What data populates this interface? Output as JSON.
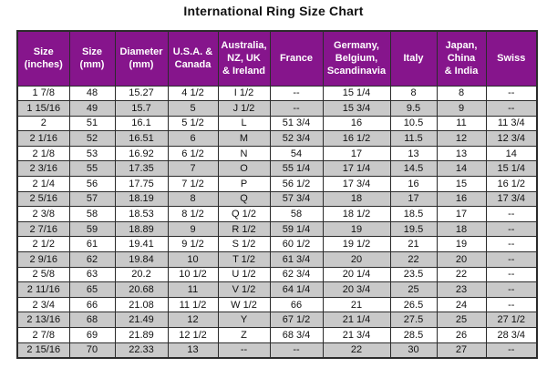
{
  "page": {
    "title": "International Ring Size Chart"
  },
  "colors": {
    "header_bg": "#86158c",
    "header_text": "#ffffff",
    "row_bg": "#ffffff",
    "row_alt_bg": "#c9c9c9",
    "border": "#2b2b2b",
    "body_text": "#111111"
  },
  "chart_data": {
    "type": "table",
    "title": "International Ring Size Chart",
    "columns": [
      "Size\n(inches)",
      "Size\n(mm)",
      "Diameter\n(mm)",
      "U.S.A. &\nCanada",
      "Australia,\nNZ, UK\n& Ireland",
      "France",
      "Germany,\nBelgium,\nScandinavia",
      "Italy",
      "Japan,\nChina\n& India",
      "Swiss"
    ],
    "rows": [
      [
        "1 7/8",
        "48",
        "15.27",
        "4 1/2",
        "I 1/2",
        "--",
        "15 1/4",
        "8",
        "8",
        "--"
      ],
      [
        "1 15/16",
        "49",
        "15.7",
        "5",
        "J 1/2",
        "--",
        "15 3/4",
        "9.5",
        "9",
        "--"
      ],
      [
        "2",
        "51",
        "16.1",
        "5 1/2",
        "L",
        "51 3/4",
        "16",
        "10.5",
        "11",
        "11 3/4"
      ],
      [
        "2 1/16",
        "52",
        "16.51",
        "6",
        "M",
        "52 3/4",
        "16 1/2",
        "11.5",
        "12",
        "12 3/4"
      ],
      [
        "2 1/8",
        "53",
        "16.92",
        "6 1/2",
        "N",
        "54",
        "17",
        "13",
        "13",
        "14"
      ],
      [
        "2 3/16",
        "55",
        "17.35",
        "7",
        "O",
        "55 1/4",
        "17 1/4",
        "14.5",
        "14",
        "15 1/4"
      ],
      [
        "2 1/4",
        "56",
        "17.75",
        "7 1/2",
        "P",
        "56 1/2",
        "17 3/4",
        "16",
        "15",
        "16 1/2"
      ],
      [
        "2 5/16",
        "57",
        "18.19",
        "8",
        "Q",
        "57 3/4",
        "18",
        "17",
        "16",
        "17 3/4"
      ],
      [
        "2 3/8",
        "58",
        "18.53",
        "8 1/2",
        "Q 1/2",
        "58",
        "18 1/2",
        "18.5",
        "17",
        "--"
      ],
      [
        "2 7/16",
        "59",
        "18.89",
        "9",
        "R 1/2",
        "59 1/4",
        "19",
        "19.5",
        "18",
        "--"
      ],
      [
        "2 1/2",
        "61",
        "19.41",
        "9 1/2",
        "S 1/2",
        "60 1/2",
        "19 1/2",
        "21",
        "19",
        "--"
      ],
      [
        "2 9/16",
        "62",
        "19.84",
        "10",
        "T 1/2",
        "61 3/4",
        "20",
        "22",
        "20",
        "--"
      ],
      [
        "2 5/8",
        "63",
        "20.2",
        "10 1/2",
        "U 1/2",
        "62 3/4",
        "20 1/4",
        "23.5",
        "22",
        "--"
      ],
      [
        "2 11/16",
        "65",
        "20.68",
        "11",
        "V 1/2",
        "64 1/4",
        "20 3/4",
        "25",
        "23",
        "--"
      ],
      [
        "2 3/4",
        "66",
        "21.08",
        "11 1/2",
        "W 1/2",
        "66",
        "21",
        "26.5",
        "24",
        "--"
      ],
      [
        "2 13/16",
        "68",
        "21.49",
        "12",
        "Y",
        "67 1/2",
        "21 1/4",
        "27.5",
        "25",
        "27 1/2"
      ],
      [
        "2 7/8",
        "69",
        "21.89",
        "12 1/2",
        "Z",
        "68 3/4",
        "21 3/4",
        "28.5",
        "26",
        "28 3/4"
      ],
      [
        "2 15/16",
        "70",
        "22.33",
        "13",
        "--",
        "--",
        "22",
        "30",
        "27",
        "--"
      ]
    ]
  }
}
